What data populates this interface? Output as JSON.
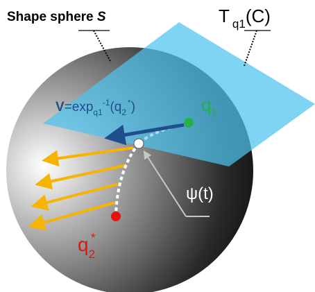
{
  "labels": {
    "sphere": {
      "text": "Shape sphere ",
      "symbol": "S"
    },
    "tangent_plane": {
      "main": "T",
      "sub": "q1",
      "tail": "(C)"
    },
    "vector": {
      "name": "V",
      "eq": "=exp",
      "sub": "q1",
      "sup": "-1",
      "open": "(q",
      "arg_sub": "2",
      "arg_sup": "*",
      "close": ")"
    },
    "q1": {
      "main": "q",
      "sub": "1"
    },
    "path": "ψ(t)",
    "q2": {
      "main": "q",
      "sub": "2",
      "sup": "*"
    }
  }
}
